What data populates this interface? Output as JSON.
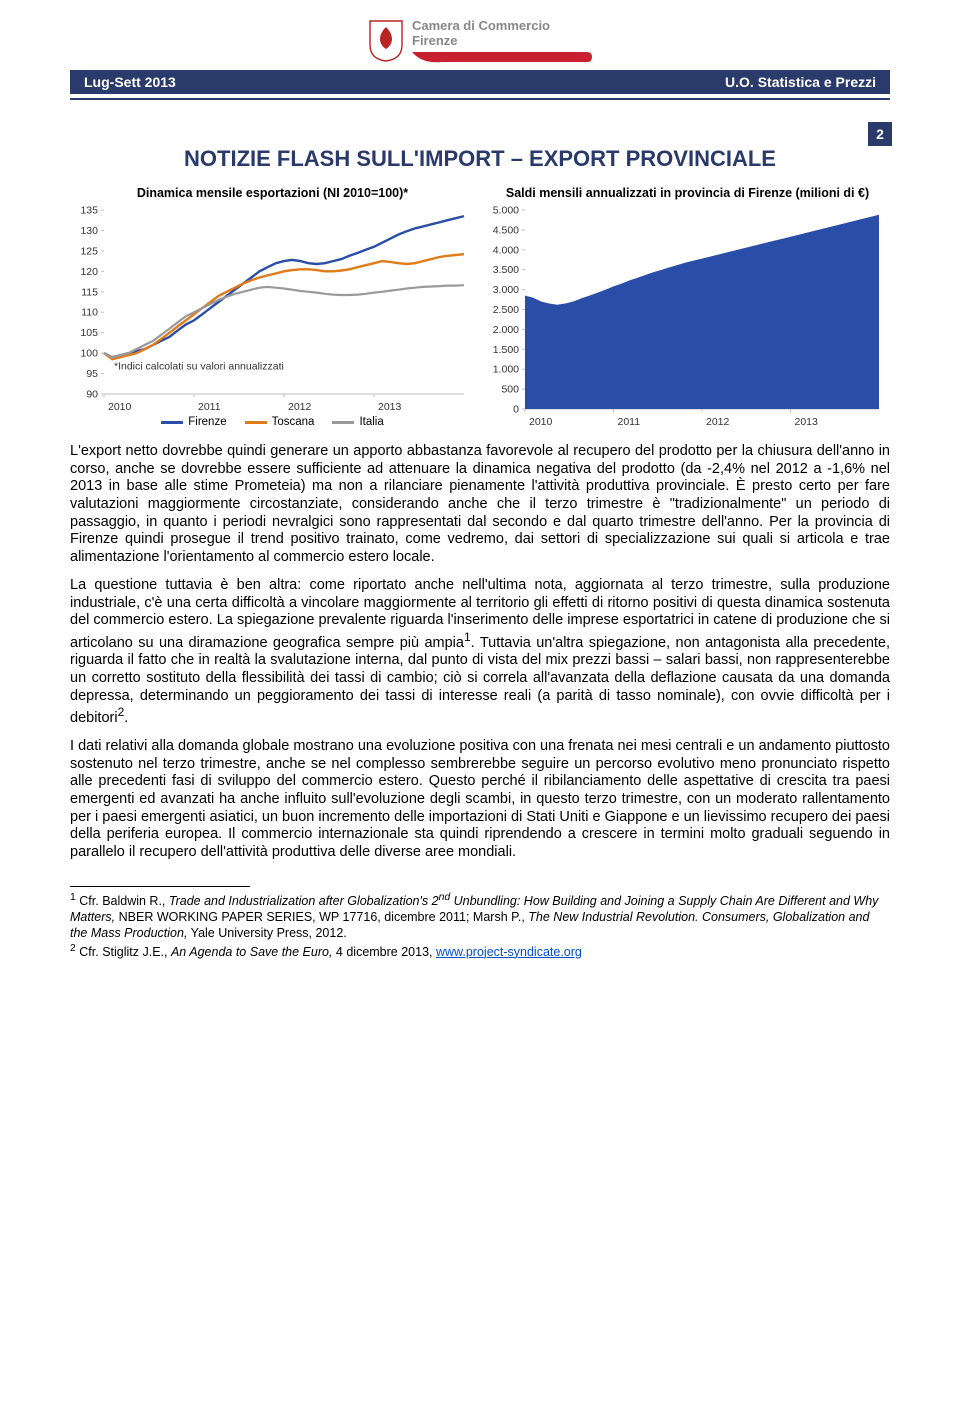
{
  "logo": {
    "line1": "Camera di Commercio",
    "line2": "Firenze"
  },
  "subheader": {
    "left": "Lug-Sett 2013",
    "right": "U.O. Statistica e Prezzi",
    "page": "2"
  },
  "title": "NOTIZIE FLASH SULL'IMPORT – EXPORT PROVINCIALE",
  "chart1": {
    "type": "line",
    "title": "Dinamica mensile esportazioni (NI 2010=100)*",
    "note_label": "*Indici calcolati su valori annualizzati",
    "x_labels": [
      "2010",
      "2011",
      "2012",
      "2013"
    ],
    "ylim": [
      90,
      135
    ],
    "ytick_step": 5,
    "yticks": [
      90,
      95,
      100,
      105,
      110,
      115,
      120,
      125,
      130,
      135
    ],
    "n_points": 45,
    "series": [
      {
        "name": "Firenze",
        "color": "#2a4da8",
        "width": 2.4,
        "values": [
          100,
          99,
          99.5,
          100,
          100.5,
          101,
          102,
          103,
          104,
          105.5,
          107,
          108,
          109.5,
          111,
          112.5,
          114,
          115.5,
          117,
          118.5,
          120,
          121,
          122,
          122.5,
          122.8,
          122.5,
          122,
          121.8,
          122,
          122.5,
          123,
          123.8,
          124.5,
          125.3,
          126,
          127,
          128,
          129,
          129.8,
          130.5,
          131,
          131.5,
          132,
          132.5,
          133,
          133.5
        ]
      },
      {
        "name": "Toscana",
        "color": "#e07b1a",
        "width": 2.4,
        "values": [
          100,
          98.5,
          99,
          99.5,
          100,
          101,
          102,
          103.5,
          105,
          106.5,
          108,
          109.5,
          111,
          112.5,
          114,
          115,
          116,
          117,
          117.8,
          118.5,
          119,
          119.5,
          120,
          120.3,
          120.5,
          120.5,
          120.3,
          120,
          120,
          120.2,
          120.5,
          121,
          121.5,
          122,
          122.5,
          122.3,
          122,
          121.8,
          122,
          122.5,
          123,
          123.5,
          123.8,
          124,
          124.2
        ]
      },
      {
        "name": "Italia",
        "color": "#9a9a9a",
        "width": 2.2,
        "values": [
          100,
          99,
          99.5,
          100,
          101,
          102,
          103,
          104.5,
          106,
          107.5,
          109,
          110,
          111,
          112,
          113,
          113.8,
          114.5,
          115,
          115.5,
          116,
          116.2,
          116,
          115.8,
          115.5,
          115.2,
          115,
          114.8,
          114.5,
          114.3,
          114.2,
          114.2,
          114.3,
          114.5,
          114.8,
          115,
          115.3,
          115.5,
          115.8,
          116,
          116.2,
          116.3,
          116.4,
          116.5,
          116.5,
          116.6
        ]
      }
    ],
    "axis_color": "#bfbfbf",
    "grid_color": "#e6e6e6",
    "tick_font": 10.5,
    "background_color": "#ffffff"
  },
  "chart2": {
    "type": "area",
    "title": "Saldi mensili annualizzati in provincia di Firenze (milioni di €)",
    "x_labels": [
      "2010",
      "2011",
      "2012",
      "2013"
    ],
    "ylim": [
      0,
      5000
    ],
    "ytick_step": 500,
    "yticks_labels": [
      "0",
      "500",
      "1.000",
      "1.500",
      "2.000",
      "2.500",
      "3.000",
      "3.500",
      "4.000",
      "4.500",
      "5.000"
    ],
    "n_points": 45,
    "fill_color": "#2a4da8",
    "values": [
      2850,
      2800,
      2700,
      2650,
      2620,
      2650,
      2700,
      2780,
      2850,
      2920,
      3000,
      3080,
      3150,
      3230,
      3300,
      3370,
      3440,
      3500,
      3560,
      3620,
      3680,
      3730,
      3780,
      3830,
      3880,
      3930,
      3980,
      4030,
      4080,
      4130,
      4180,
      4230,
      4280,
      4330,
      4380,
      4430,
      4480,
      4530,
      4580,
      4630,
      4680,
      4730,
      4780,
      4830,
      4880
    ],
    "axis_color": "#bfbfbf",
    "background_color": "#ffffff",
    "tick_font": 10.5
  },
  "paragraphs": {
    "p1": "L'export netto dovrebbe quindi generare un apporto abbastanza favorevole al recupero del prodotto per la chiusura dell'anno in corso, anche se dovrebbe essere sufficiente ad attenuare la dinamica negativa del prodotto (da -2,4% nel 2012 a -1,6% nel 2013 in base alle stime Prometeia) ma non a rilanciare pienamente l'attività produttiva provinciale. È presto certo per fare valutazioni maggiormente circostanziate, considerando anche che il terzo trimestre è \"tradizionalmente\" un periodo di passaggio, in quanto i periodi nevralgici sono rappresentati dal secondo e dal quarto trimestre dell'anno. Per la provincia di Firenze quindi prosegue il trend positivo trainato, come vedremo, dai settori di specializzazione sui quali si articola e trae alimentazione l'orientamento al commercio estero locale.",
    "p2a": "La questione tuttavia è ben altra: come riportato anche nell'ultima nota, aggiornata al terzo trimestre, sulla produzione industriale, c'è una certa difficoltà a vincolare maggiormente al territorio gli effetti di ritorno positivi di questa dinamica sostenuta del commercio estero. La spiegazione prevalente riguarda l'inserimento delle imprese esportatrici in catene di produzione che si articolano su una diramazione geografica sempre più ampia",
    "p2b": ". Tuttavia un'altra spiegazione, non antagonista alla precedente, riguarda il fatto che in realtà la svalutazione interna, dal punto di vista del mix prezzi bassi – salari bassi, non rappresenterebbe un corretto sostituto della flessibilità dei tassi di cambio; ciò si correla all'avanzata della deflazione causata da una domanda depressa, determinando un peggioramento dei tassi di interesse reali (a parità di tasso nominale), con ovvie difficoltà per i debitori",
    "p2c": ".",
    "p3": "I dati relativi alla domanda globale mostrano una evoluzione positiva con una frenata nei mesi centrali e un andamento piuttosto sostenuto nel terzo trimestre, anche se nel complesso sembrerebbe seguire un percorso evolutivo meno pronunciato rispetto alle precedenti fasi di sviluppo del commercio estero. Questo perché il ribilanciamento delle aspettative di crescita tra paesi emergenti ed avanzati ha anche influito sull'evoluzione degli scambi, in questo terzo trimestre, con un moderato rallentamento per i paesi emergenti asiatici, un buon incremento delle importazioni di Stati Uniti e Giappone e un lievissimo recupero dei paesi della periferia europea. Il commercio internazionale sta quindi riprendendo a crescere in termini molto graduali seguendo in parallelo il recupero dell'attività produttiva delle diverse aree mondiali."
  },
  "footnotes": {
    "f1_num": "1",
    "f1_a": " Cfr. Baldwin R., ",
    "f1_i": "Trade and Industrialization after Globalization's 2",
    "f1_sup": "nd",
    "f1_i2": " Unbundling: How Building and Joining a Supply Chain Are Different and Why Matters,",
    "f1_b": " NBER WORKING PAPER SERIES, WP 17716, dicembre 2011;  Marsh P., ",
    "f1_i3": "The New Industrial Revolution. Consumers, Globalization and the Mass Production,",
    "f1_c": " Yale University Press, 2012.",
    "f2_num": "2",
    "f2_a": " Cfr. Stiglitz J.E., ",
    "f2_i": "An Agenda to Save the Euro,",
    "f2_b": " 4 dicembre 2013, ",
    "f2_link": "www.project-syndicate.org"
  }
}
